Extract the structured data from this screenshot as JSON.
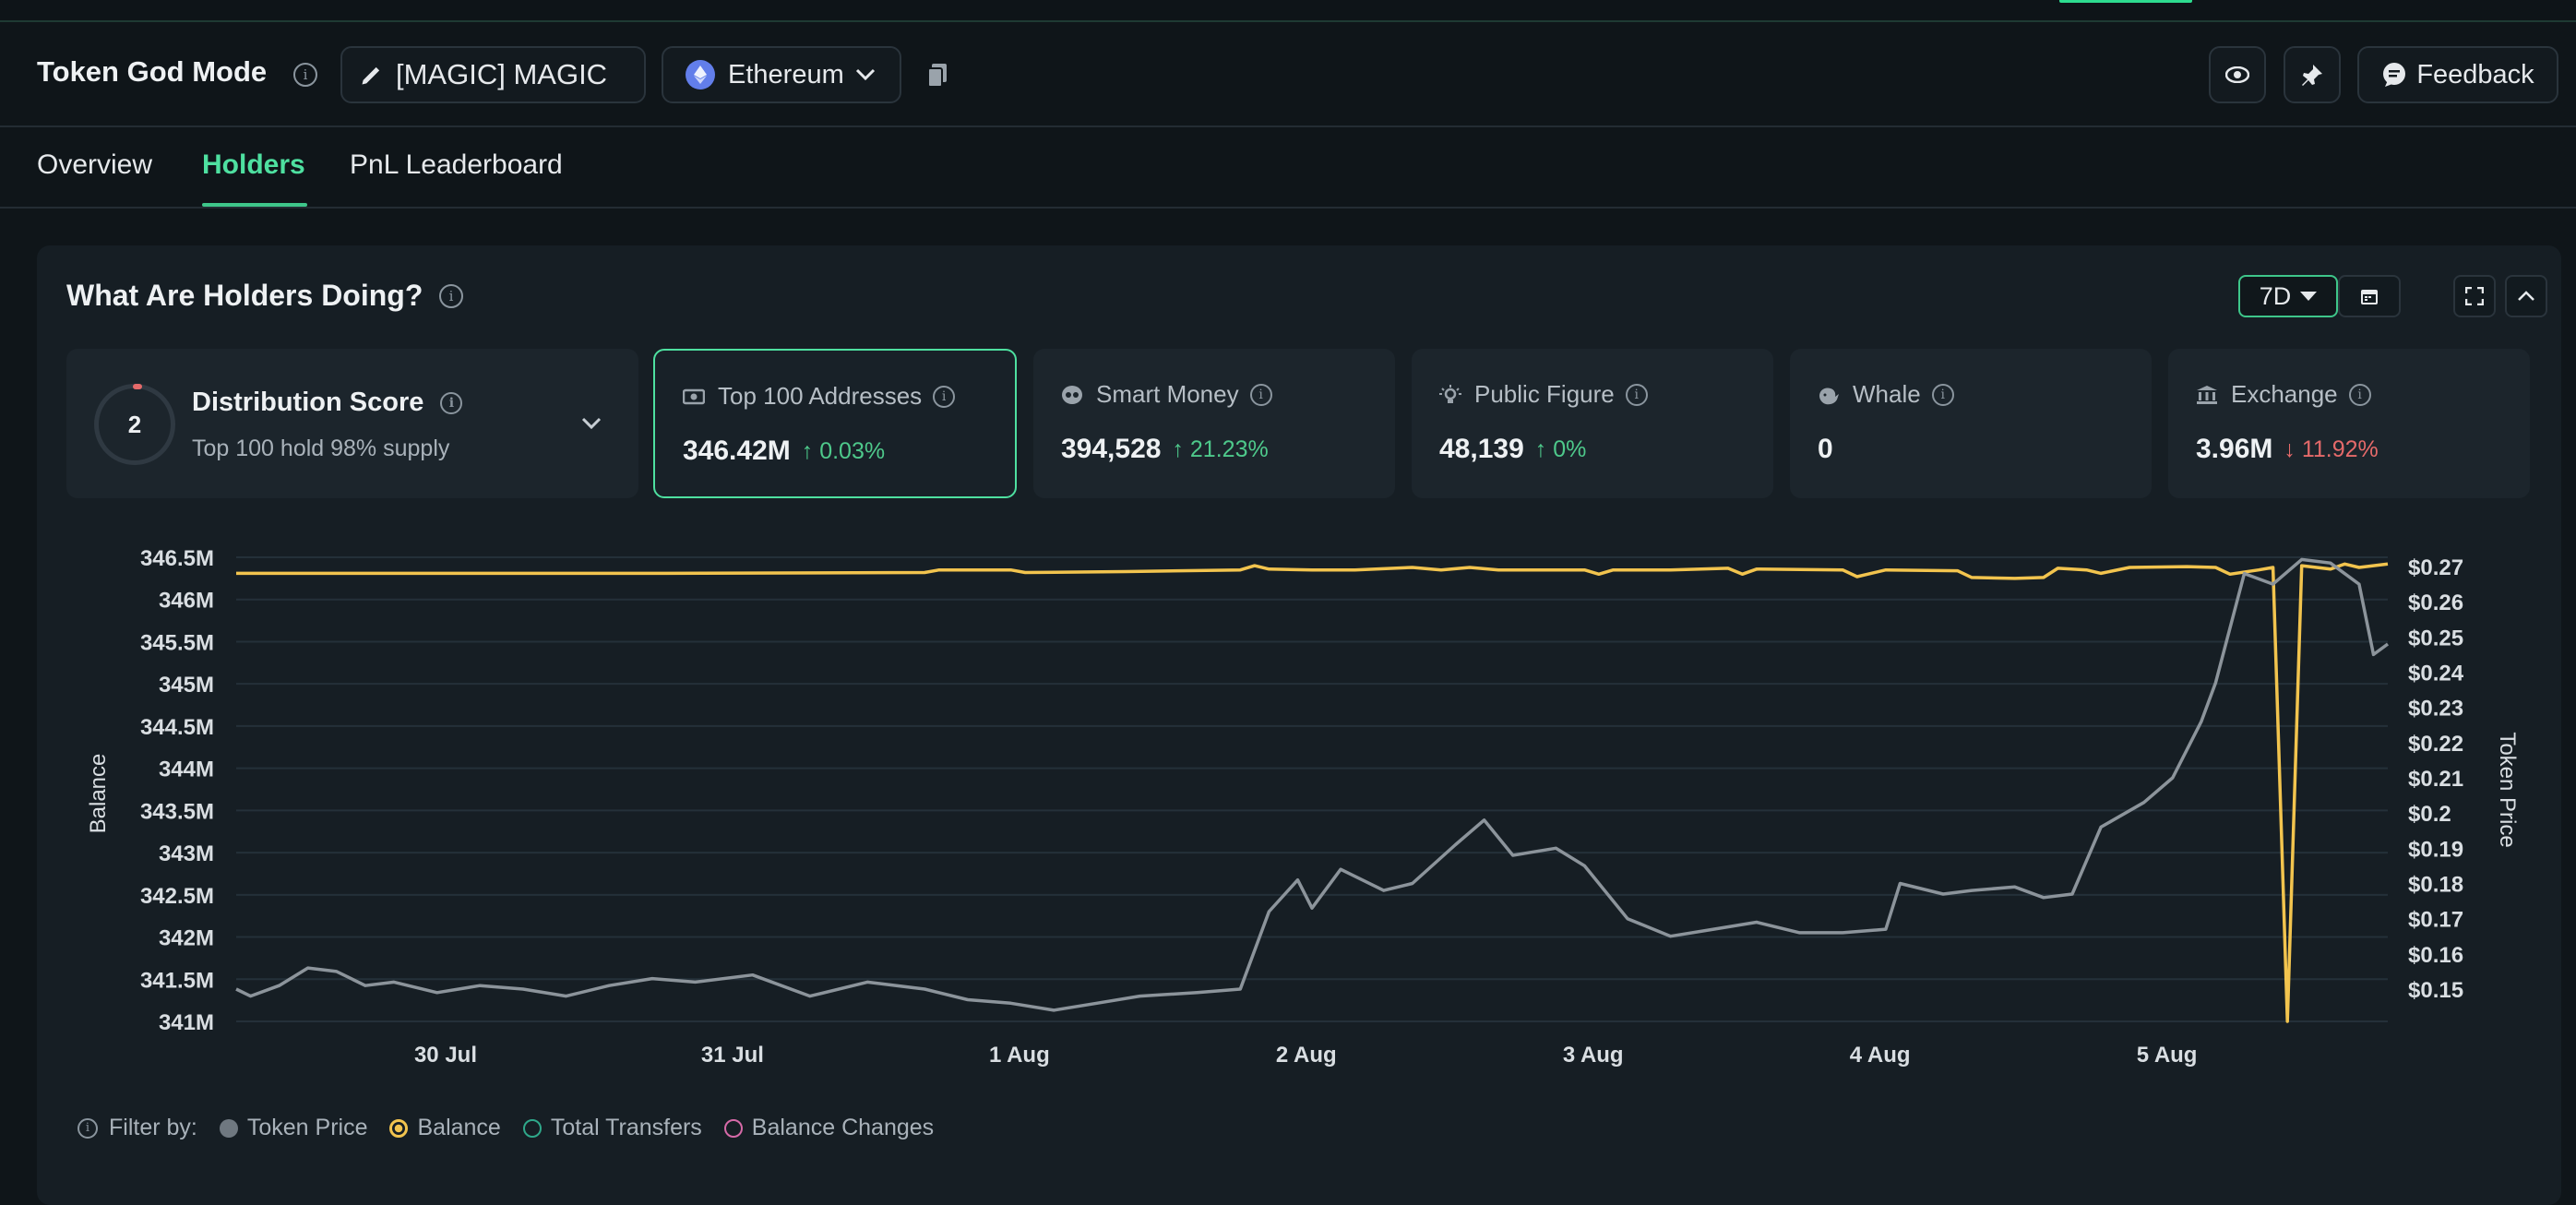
{
  "header": {
    "title": "Token God Mode",
    "token_label": "[MAGIC] MAGIC",
    "chain_label": "Ethereum",
    "feedback_label": "Feedback"
  },
  "tabs": [
    {
      "label": "Overview",
      "active": false
    },
    {
      "label": "Holders",
      "active": true
    },
    {
      "label": "PnL Leaderboard",
      "active": false
    }
  ],
  "panel": {
    "title": "What Are Holders Doing?",
    "range": "7D"
  },
  "distribution": {
    "score": "2",
    "title": "Distribution Score",
    "subtitle": "Top 100 hold 98% supply"
  },
  "cards": [
    {
      "label": "Top 100 Addresses",
      "icon": "money-icon",
      "value": "346.42M",
      "change": "0.03%",
      "direction": "up",
      "selected": true
    },
    {
      "label": "Smart Money",
      "icon": "brain-icon",
      "value": "394,528",
      "change": "21.23%",
      "direction": "up",
      "selected": false
    },
    {
      "label": "Public Figure",
      "icon": "lightbulb-icon",
      "value": "48,139",
      "change": "0%",
      "direction": "up",
      "selected": false
    },
    {
      "label": "Whale",
      "icon": "whale-icon",
      "value": "0",
      "change": "",
      "direction": "",
      "selected": false
    },
    {
      "label": "Exchange",
      "icon": "bank-icon",
      "value": "3.96M",
      "change": "11.92%",
      "direction": "down",
      "selected": false
    }
  ],
  "chart_data": {
    "type": "line",
    "ylabel_left": "Balance",
    "ylabel_right": "Token Price",
    "y_left_ticks": [
      "346.5M",
      "346M",
      "345.5M",
      "345M",
      "344.5M",
      "344M",
      "343.5M",
      "343M",
      "342.5M",
      "342M",
      "341.5M",
      "341M"
    ],
    "y_left_range": [
      341.0,
      346.5
    ],
    "y_right_ticks": [
      "$0.27",
      "$0.26",
      "$0.25",
      "$0.24",
      "$0.23",
      "$0.22",
      "$0.21",
      "$0.2",
      "$0.19",
      "$0.18",
      "$0.17",
      "$0.16",
      "$0.15"
    ],
    "y_right_range": [
      0.15,
      0.27
    ],
    "x_ticks": [
      "30 Jul",
      "31 Jul",
      "1 Aug",
      "2 Aug",
      "3 Aug",
      "4 Aug",
      "5 Aug"
    ],
    "x_range_days": [
      0,
      7.5
    ],
    "grid": true,
    "colors": {
      "price": "#8c949b",
      "balance": "#f2c44e"
    },
    "series": [
      {
        "name": "Balance",
        "color": "#f2c44e",
        "points": [
          [
            0,
            346.31
          ],
          [
            0.5,
            346.31
          ],
          [
            1,
            346.31
          ],
          [
            1.5,
            346.31
          ],
          [
            2.4,
            346.32
          ],
          [
            2.45,
            346.35
          ],
          [
            2.7,
            346.35
          ],
          [
            2.75,
            346.32
          ],
          [
            3.1,
            346.33
          ],
          [
            3.5,
            346.35
          ],
          [
            3.55,
            346.4
          ],
          [
            3.6,
            346.36
          ],
          [
            3.75,
            346.35
          ],
          [
            3.8,
            346.35
          ],
          [
            3.9,
            346.35
          ],
          [
            4.1,
            346.38
          ],
          [
            4.2,
            346.35
          ],
          [
            4.3,
            346.38
          ],
          [
            4.4,
            346.35
          ],
          [
            4.7,
            346.35
          ],
          [
            4.75,
            346.3
          ],
          [
            4.8,
            346.35
          ],
          [
            5.0,
            346.35
          ],
          [
            5.2,
            346.37
          ],
          [
            5.25,
            346.3
          ],
          [
            5.3,
            346.36
          ],
          [
            5.6,
            346.35
          ],
          [
            5.65,
            346.27
          ],
          [
            5.75,
            346.35
          ],
          [
            6.0,
            346.34
          ],
          [
            6.05,
            346.26
          ],
          [
            6.2,
            346.25
          ],
          [
            6.3,
            346.26
          ],
          [
            6.35,
            346.37
          ],
          [
            6.45,
            346.35
          ],
          [
            6.5,
            346.31
          ],
          [
            6.6,
            346.38
          ],
          [
            6.8,
            346.39
          ],
          [
            6.9,
            346.38
          ],
          [
            6.95,
            346.3
          ],
          [
            7.05,
            346.35
          ],
          [
            7.1,
            346.38
          ],
          [
            7.15,
            341.0
          ],
          [
            7.2,
            346.4
          ],
          [
            7.3,
            346.36
          ],
          [
            7.35,
            346.42
          ],
          [
            7.4,
            346.38
          ],
          [
            7.5,
            346.42
          ]
        ]
      },
      {
        "name": "Token Price",
        "color": "#8c949b",
        "points": [
          [
            0,
            0.15
          ],
          [
            0.05,
            0.148
          ],
          [
            0.15,
            0.151
          ],
          [
            0.25,
            0.156
          ],
          [
            0.35,
            0.155
          ],
          [
            0.45,
            0.151
          ],
          [
            0.55,
            0.152
          ],
          [
            0.7,
            0.149
          ],
          [
            0.85,
            0.151
          ],
          [
            1.0,
            0.15
          ],
          [
            1.15,
            0.148
          ],
          [
            1.3,
            0.151
          ],
          [
            1.45,
            0.153
          ],
          [
            1.6,
            0.152
          ],
          [
            1.8,
            0.154
          ],
          [
            2.0,
            0.148
          ],
          [
            2.2,
            0.152
          ],
          [
            2.4,
            0.15
          ],
          [
            2.55,
            0.147
          ],
          [
            2.7,
            0.146
          ],
          [
            2.85,
            0.144
          ],
          [
            3.0,
            0.146
          ],
          [
            3.15,
            0.148
          ],
          [
            3.35,
            0.149
          ],
          [
            3.5,
            0.15
          ],
          [
            3.6,
            0.172
          ],
          [
            3.7,
            0.181
          ],
          [
            3.75,
            0.173
          ],
          [
            3.85,
            0.184
          ],
          [
            4.0,
            0.178
          ],
          [
            4.1,
            0.18
          ],
          [
            4.25,
            0.191
          ],
          [
            4.35,
            0.198
          ],
          [
            4.45,
            0.188
          ],
          [
            4.6,
            0.19
          ],
          [
            4.7,
            0.185
          ],
          [
            4.85,
            0.17
          ],
          [
            5.0,
            0.165
          ],
          [
            5.15,
            0.167
          ],
          [
            5.3,
            0.169
          ],
          [
            5.45,
            0.166
          ],
          [
            5.6,
            0.166
          ],
          [
            5.75,
            0.167
          ],
          [
            5.8,
            0.18
          ],
          [
            5.95,
            0.177
          ],
          [
            6.05,
            0.178
          ],
          [
            6.2,
            0.179
          ],
          [
            6.3,
            0.176
          ],
          [
            6.4,
            0.177
          ],
          [
            6.5,
            0.196
          ],
          [
            6.65,
            0.203
          ],
          [
            6.75,
            0.21
          ],
          [
            6.85,
            0.226
          ],
          [
            6.9,
            0.237
          ],
          [
            7.0,
            0.268
          ],
          [
            7.1,
            0.265
          ],
          [
            7.2,
            0.272
          ],
          [
            7.3,
            0.271
          ],
          [
            7.4,
            0.265
          ],
          [
            7.45,
            0.245
          ],
          [
            7.5,
            0.248
          ]
        ]
      }
    ]
  },
  "filters": {
    "label": "Filter by:",
    "items": [
      "Token Price",
      "Balance",
      "Total Transfers",
      "Balance Changes"
    ]
  }
}
